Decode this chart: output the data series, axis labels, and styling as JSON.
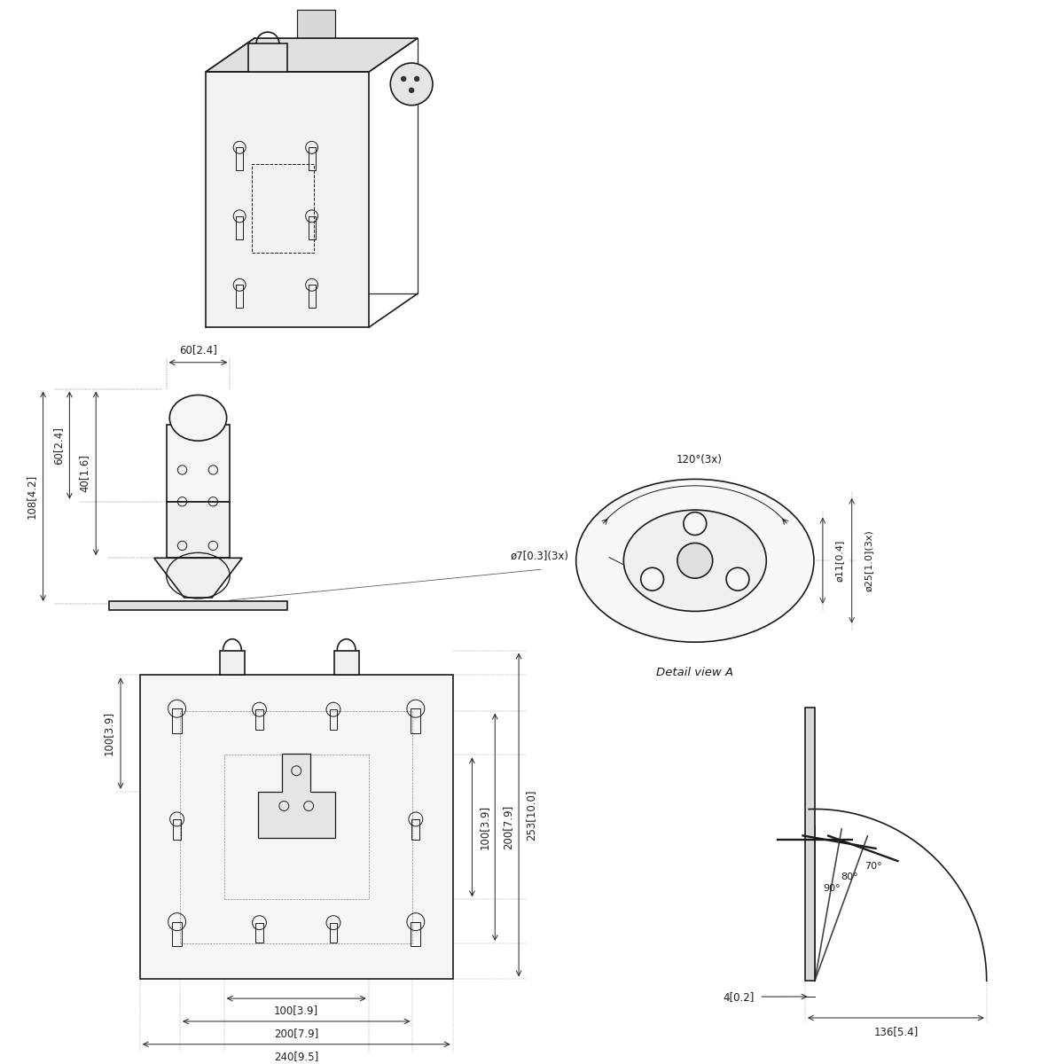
{
  "bg_color": "#ffffff",
  "line_color": "#1a1a1a",
  "line_width": 1.2,
  "thin_line": 0.7,
  "dim_line": 0.7,
  "font_size": 8.5,
  "dims_front": {
    "height_108": "108[4.2]",
    "height_60": "60[2.4]",
    "height_40": "40[1.6]",
    "width_60": "60[2.4]"
  },
  "dims_detail": {
    "angle": "120°(3x)",
    "dia7": "ø7[0.3](3x)",
    "dia11": "ø11[0.4]",
    "dia25": "ø25[1.0](3x)",
    "detail_label": "Detail view A"
  },
  "dims_bottom": {
    "width_100": "100[3.9]",
    "width_200": "200[7.9]",
    "width_240": "240[9.5]",
    "height_100": "100[3.9]",
    "height_200": "200[7.9]",
    "height_253": "253[10.0]"
  },
  "dims_side": {
    "angle_90": "90°",
    "angle_80": "80°",
    "angle_70": "70°",
    "width_136": "136[5.4]",
    "height_4": "4[0.2]"
  }
}
